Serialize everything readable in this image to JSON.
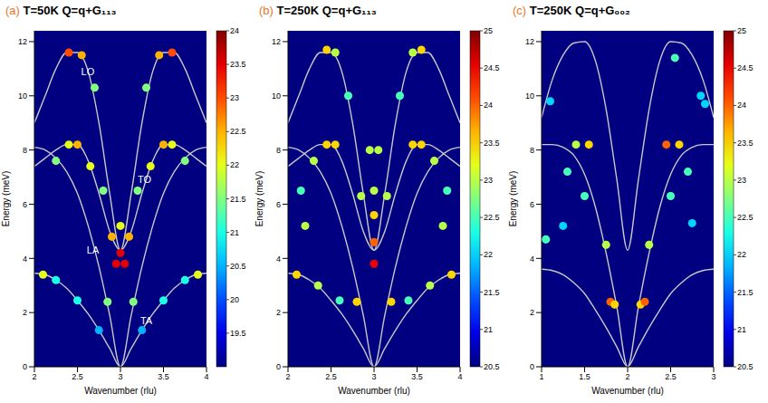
{
  "chart_data": [
    {
      "panel": "(a)",
      "title": "T=50K Q=q+G₁₁₃",
      "type": "scatter",
      "x_label": "Wavenumber (rlu)",
      "y_label": "Energy (meV)",
      "xlim": [
        2,
        4
      ],
      "xticks": [
        2,
        2.5,
        3,
        3.5,
        4
      ],
      "ylim": [
        0,
        12.4
      ],
      "yticks": [
        0,
        2,
        4,
        6,
        8,
        10,
        12
      ],
      "curves": {
        "color": "#c8c8c8",
        "x": [
          2,
          2.125,
          2.25,
          2.375,
          2.5,
          2.625,
          2.75,
          2.875,
          3,
          3.125,
          3.25,
          3.375,
          3.5,
          3.625,
          3.75,
          3.875,
          4
        ],
        "y": [
          [
            3.45,
            3.4,
            3.2,
            2.9,
            2.45,
            1.95,
            1.35,
            0.68,
            0,
            0.68,
            1.35,
            1.95,
            2.45,
            2.9,
            3.2,
            3.4,
            3.45
          ],
          [
            8.1,
            8.0,
            7.7,
            7.2,
            6.4,
            5.2,
            3.7,
            1.9,
            0,
            1.9,
            3.7,
            5.2,
            6.4,
            7.2,
            7.7,
            8.0,
            8.1
          ],
          [
            7.4,
            7.7,
            8.0,
            8.2,
            8.2,
            7.6,
            6.4,
            5.0,
            4.3,
            5.0,
            6.4,
            7.6,
            8.2,
            8.2,
            8.0,
            7.7,
            7.4
          ],
          [
            9.0,
            10.0,
            11.0,
            11.6,
            11.6,
            10.9,
            9.0,
            6.4,
            4.3,
            6.4,
            9.0,
            10.9,
            11.6,
            11.6,
            11.0,
            10.0,
            9.0
          ]
        ]
      },
      "peaks": {
        "x": [
          2.4,
          2.55,
          3.45,
          3.6,
          2.7,
          3.3,
          2.4,
          2.5,
          3.5,
          3.6,
          2.65,
          3.35,
          2.25,
          3.75,
          2.8,
          3.2,
          2.9,
          3.1,
          3,
          3,
          2.95,
          3.05,
          2.85,
          3.15,
          2.25,
          2.5,
          2.75,
          3.25,
          3.5,
          3.75,
          2.1,
          3.9
        ],
        "y": [
          11.6,
          11.5,
          11.5,
          11.6,
          10.3,
          10.3,
          8.2,
          8.2,
          8.2,
          8.2,
          7.4,
          7.4,
          7.6,
          7.6,
          6.5,
          6.5,
          4.8,
          4.8,
          4.2,
          5.2,
          3.8,
          3.8,
          2.4,
          2.4,
          3.2,
          2.45,
          1.35,
          1.35,
          2.45,
          3.2,
          3.4,
          3.4
        ],
        "intensity": [
          23,
          22.5,
          22.5,
          23,
          21.5,
          21.5,
          22,
          22.5,
          22.5,
          22,
          22,
          22,
          21.5,
          21.5,
          21.5,
          21.5,
          22.5,
          22.5,
          23.5,
          22,
          23.5,
          23.5,
          21.5,
          21.5,
          21,
          21,
          20.5,
          20.5,
          21,
          21,
          22,
          22
        ]
      },
      "colorbar": {
        "range": [
          19,
          24
        ],
        "ticks": [
          19.5,
          20,
          20.5,
          21,
          21.5,
          22,
          22.5,
          23,
          23.5,
          24
        ]
      },
      "annotations": [
        {
          "text": "LO",
          "x": 2.62,
          "y": 10.9
        },
        {
          "text": "TO",
          "x": 3.28,
          "y": 6.9
        },
        {
          "text": "LA",
          "x": 2.68,
          "y": 4.3
        },
        {
          "text": "TA",
          "x": 3.3,
          "y": 1.7
        }
      ]
    },
    {
      "panel": "(b)",
      "title": "T=250K Q=q+G₁₁₃",
      "type": "scatter",
      "x_label": "Wavenumber (rlu)",
      "y_label": "Energy (meV)",
      "xlim": [
        2,
        4
      ],
      "xticks": [
        2,
        2.5,
        3,
        3.5,
        4
      ],
      "ylim": [
        0,
        12.4
      ],
      "yticks": [
        0,
        2,
        4,
        6,
        8,
        10,
        12
      ],
      "curves": {
        "color": "#c8c8c8",
        "x": [
          2,
          2.125,
          2.25,
          2.375,
          2.5,
          2.625,
          2.75,
          2.875,
          3,
          3.125,
          3.25,
          3.375,
          3.5,
          3.625,
          3.75,
          3.875,
          4
        ],
        "y": [
          [
            3.45,
            3.4,
            3.2,
            2.9,
            2.45,
            1.95,
            1.35,
            0.68,
            0,
            0.68,
            1.35,
            1.95,
            2.45,
            2.9,
            3.2,
            3.4,
            3.45
          ],
          [
            8.1,
            8.0,
            7.7,
            7.2,
            6.4,
            5.2,
            3.7,
            1.9,
            0,
            1.9,
            3.7,
            5.2,
            6.4,
            7.2,
            7.7,
            8.0,
            8.1
          ],
          [
            7.4,
            7.7,
            8.0,
            8.2,
            8.2,
            7.6,
            6.4,
            5.0,
            4.3,
            5.0,
            6.4,
            7.6,
            8.2,
            8.2,
            8.0,
            7.7,
            7.4
          ],
          [
            9.0,
            10.0,
            11.0,
            11.6,
            11.6,
            10.9,
            9.0,
            6.4,
            4.3,
            6.4,
            9.0,
            10.9,
            11.6,
            11.6,
            11.0,
            10.0,
            9.0
          ]
        ]
      },
      "peaks": {
        "x": [
          2.45,
          2.55,
          3.45,
          3.55,
          2.7,
          3.3,
          2.45,
          2.55,
          3.45,
          3.55,
          2.3,
          3.7,
          2.15,
          3.85,
          2.2,
          3.8,
          2.85,
          3.15,
          3,
          3,
          3,
          3,
          2.95,
          3.05,
          2.8,
          3.2,
          2.6,
          3.4,
          2.35,
          3.65,
          2.1,
          3.9
        ],
        "y": [
          11.7,
          11.6,
          11.6,
          11.7,
          10.0,
          10.0,
          8.2,
          8.2,
          8.2,
          8.2,
          7.6,
          7.6,
          6.5,
          6.5,
          5.2,
          5.2,
          6.3,
          6.3,
          3.8,
          4.6,
          5.6,
          6.5,
          8.0,
          8.0,
          2.4,
          2.4,
          2.45,
          2.45,
          3.0,
          3.0,
          3.4,
          3.4
        ],
        "intensity": [
          23.5,
          23,
          23,
          23.5,
          22.5,
          22.5,
          23.5,
          23.5,
          23.5,
          23.5,
          23,
          23,
          22.5,
          22.5,
          23,
          23,
          23,
          23,
          24.5,
          24,
          23.5,
          23,
          23,
          23,
          23.5,
          23.5,
          22.5,
          22.5,
          23,
          23,
          23.5,
          23.5
        ]
      },
      "colorbar": {
        "range": [
          20.5,
          25
        ],
        "ticks": [
          20.5,
          21,
          21.5,
          22,
          22.5,
          23,
          23.5,
          24,
          24.5,
          25
        ]
      },
      "annotations": []
    },
    {
      "panel": "(c)",
      "title": "T=250K Q=q+G₀₀₂",
      "type": "scatter",
      "x_label": "Wavenumber (rlu)",
      "y_label": "Energy (meV)",
      "xlim": [
        1,
        3
      ],
      "xticks": [
        1,
        1.5,
        2,
        2.5,
        3
      ],
      "ylim": [
        0,
        12.4
      ],
      "yticks": [
        0,
        2,
        4,
        6,
        8,
        10,
        12
      ],
      "curves": {
        "color": "#c8c8c8",
        "x": [
          1,
          1.125,
          1.25,
          1.375,
          1.5,
          1.625,
          1.75,
          1.875,
          2,
          2.125,
          2.25,
          2.375,
          2.5,
          2.625,
          2.75,
          2.875,
          3
        ],
        "y": [
          [
            3.6,
            3.55,
            3.4,
            3.1,
            2.7,
            2.1,
            1.45,
            0.73,
            0,
            0.73,
            1.45,
            2.1,
            2.7,
            3.1,
            3.4,
            3.55,
            3.6
          ],
          [
            8.2,
            8.2,
            8.1,
            7.8,
            7.1,
            5.9,
            4.2,
            2.2,
            0,
            2.2,
            4.2,
            5.9,
            7.1,
            7.8,
            8.1,
            8.2,
            8.2
          ],
          [
            9.2,
            10.6,
            11.5,
            11.95,
            12.0,
            11.3,
            9.5,
            6.9,
            4.3,
            6.9,
            9.5,
            11.3,
            12.0,
            11.95,
            11.5,
            10.6,
            9.2
          ]
        ]
      },
      "peaks": {
        "x": [
          1.05,
          1.1,
          1.25,
          1.3,
          1.4,
          1.55,
          1.5,
          1.75,
          1.8,
          1.85,
          2.15,
          2.2,
          2.25,
          2.45,
          2.6,
          2.5,
          2.7,
          2.75,
          2.55,
          2.85,
          2.9
        ],
        "y": [
          4.7,
          9.8,
          5.2,
          7.2,
          8.2,
          8.2,
          6.3,
          4.5,
          2.4,
          2.3,
          2.3,
          2.4,
          4.5,
          8.2,
          8.2,
          6.3,
          7.2,
          5.3,
          11.4,
          10.0,
          9.7
        ],
        "intensity": [
          22.5,
          22,
          22,
          22.5,
          23,
          23.5,
          22.5,
          23,
          24,
          23.5,
          23.5,
          24,
          23,
          24,
          23.5,
          22.5,
          22.5,
          22,
          22.5,
          22,
          22
        ]
      },
      "colorbar": {
        "range": [
          20.5,
          25
        ],
        "ticks": [
          20.5,
          21,
          21.5,
          22,
          22.5,
          23,
          23.5,
          24,
          24.5,
          25
        ]
      },
      "annotations": []
    }
  ]
}
